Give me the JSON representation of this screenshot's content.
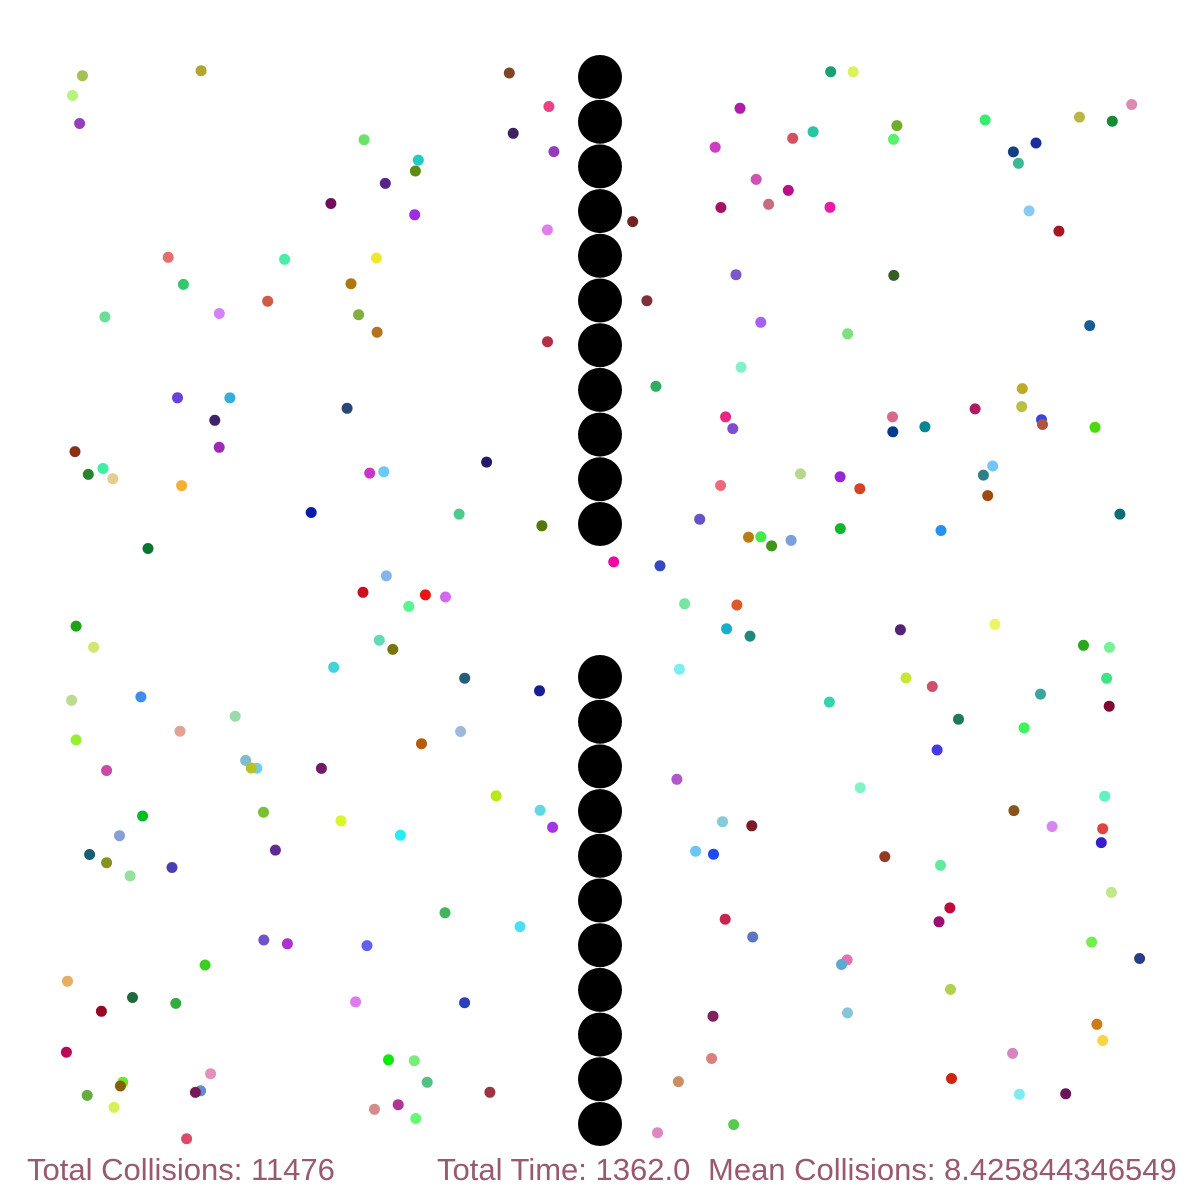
{
  "stats": {
    "total_collisions_text": "Total Collisions: 11476",
    "total_time_text": "Total Time: 1362.0",
    "mean_collisions_text": "Mean Collisions: 8.425844346549",
    "text_color": "#99596e"
  },
  "colors": {
    "wall": "#000000",
    "background": "#ffffff"
  },
  "wall": {
    "upper_count": 11,
    "lower_count": 11
  },
  "particles_count": 220
}
